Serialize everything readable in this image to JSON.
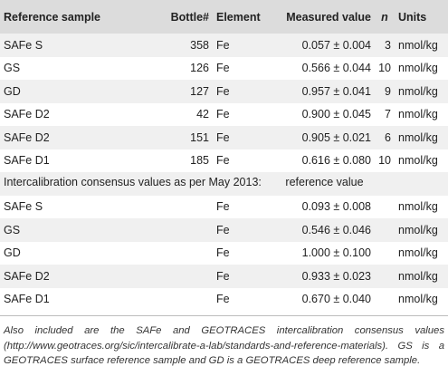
{
  "table": {
    "headers": {
      "reference_sample": "Reference sample",
      "bottle": "Bottle#",
      "element": "Element",
      "measured_value": "Measured value",
      "n": "n",
      "units": "Units"
    },
    "measured_rows": [
      {
        "sample": "SAFe S",
        "bottle": "358",
        "element": "Fe",
        "value": "0.057 ± 0.004",
        "n": "3",
        "units": "nmol/kg"
      },
      {
        "sample": "GS",
        "bottle": "126",
        "element": "Fe",
        "value": "0.566 ± 0.044",
        "n": "10",
        "units": "nmol/kg"
      },
      {
        "sample": "GD",
        "bottle": "127",
        "element": "Fe",
        "value": "0.957 ± 0.041",
        "n": "9",
        "units": "nmol/kg"
      },
      {
        "sample": "SAFe D2",
        "bottle": "42",
        "element": "Fe",
        "value": "0.900 ± 0.045",
        "n": "7",
        "units": "nmol/kg"
      },
      {
        "sample": "SAFe D2",
        "bottle": "151",
        "element": "Fe",
        "value": "0.905 ± 0.021",
        "n": "6",
        "units": "nmol/kg"
      },
      {
        "sample": "SAFe D1",
        "bottle": "185",
        "element": "Fe",
        "value": "0.616 ± 0.080",
        "n": "10",
        "units": "nmol/kg"
      }
    ],
    "consensus_heading": {
      "label": "Intercalibration consensus values as per May 2013:",
      "value_label": "reference value"
    },
    "consensus_rows": [
      {
        "sample": "SAFe S",
        "element": "Fe",
        "value": "0.093 ± 0.008",
        "units": "nmol/kg"
      },
      {
        "sample": "GS",
        "element": "Fe",
        "value": "0.546 ± 0.046",
        "units": "nmol/kg"
      },
      {
        "sample": "GD",
        "element": "Fe",
        "value": "1.000 ± 0.100",
        "units": "nmol/kg"
      },
      {
        "sample": "SAFe D2",
        "element": "Fe",
        "value": "0.933 ± 0.023",
        "units": "nmol/kg"
      },
      {
        "sample": "SAFe D1",
        "element": "Fe",
        "value": "0.670 ± 0.040",
        "units": "nmol/kg"
      }
    ]
  },
  "footnote": "Also included are the SAFe and GEOTRACES intercalibration consensus values (http://www.geotraces.org/sic/intercalibrate-a-lab/standards-and-reference-materials). GS is a GEOTRACES surface reference sample and GD is a GEOTRACES deep reference sample.",
  "colors": {
    "header_bg": "#dcdcdc",
    "stripe_bg": "#f0f0f0",
    "text": "#222222"
  }
}
